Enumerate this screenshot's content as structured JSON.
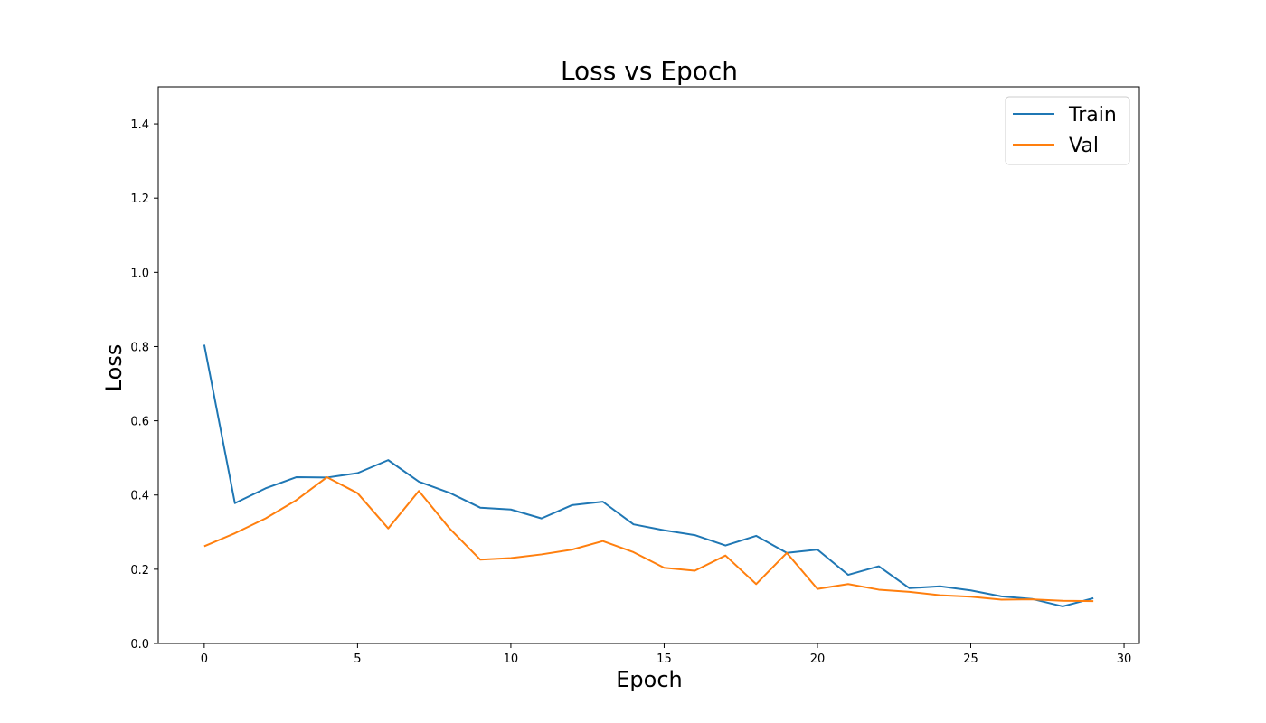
{
  "chart_data": {
    "type": "line",
    "title": "Loss vs Epoch",
    "xlabel": "Epoch",
    "ylabel": "Loss",
    "xlim": [
      -1.5,
      30.5
    ],
    "ylim": [
      0.0,
      1.5
    ],
    "xticks": [
      0,
      5,
      10,
      15,
      20,
      25,
      30
    ],
    "xtick_labels": [
      "0",
      "5",
      "10",
      "15",
      "20",
      "25",
      "30"
    ],
    "yticks": [
      0.0,
      0.2,
      0.4,
      0.6,
      0.8,
      1.0,
      1.2,
      1.4
    ],
    "ytick_labels": [
      "0.0",
      "0.2",
      "0.4",
      "0.6",
      "0.8",
      "1.0",
      "1.2",
      "1.4"
    ],
    "grid": false,
    "legend_position": "top-right",
    "x": [
      0,
      1,
      2,
      3,
      4,
      5,
      6,
      7,
      8,
      9,
      10,
      11,
      12,
      13,
      14,
      15,
      16,
      17,
      18,
      19,
      20,
      21,
      22,
      23,
      24,
      25,
      26,
      27,
      28,
      29
    ],
    "series": [
      {
        "name": "Train",
        "color": "#1f77b4",
        "values": [
          0.805,
          0.378,
          0.418,
          0.448,
          0.447,
          0.459,
          0.494,
          0.436,
          0.406,
          0.366,
          0.361,
          0.337,
          0.373,
          0.382,
          0.321,
          0.305,
          0.292,
          0.264,
          0.29,
          0.244,
          0.253,
          0.185,
          0.208,
          0.149,
          0.154,
          0.143,
          0.127,
          0.12,
          0.1,
          0.122
        ]
      },
      {
        "name": "Val",
        "color": "#ff7f0e",
        "values": [
          0.262,
          0.297,
          0.337,
          0.386,
          0.448,
          0.405,
          0.31,
          0.411,
          0.31,
          0.226,
          0.23,
          0.24,
          0.253,
          0.276,
          0.246,
          0.204,
          0.196,
          0.237,
          0.16,
          0.244,
          0.147,
          0.16,
          0.145,
          0.139,
          0.13,
          0.126,
          0.118,
          0.119,
          0.115,
          0.114
        ]
      }
    ]
  }
}
